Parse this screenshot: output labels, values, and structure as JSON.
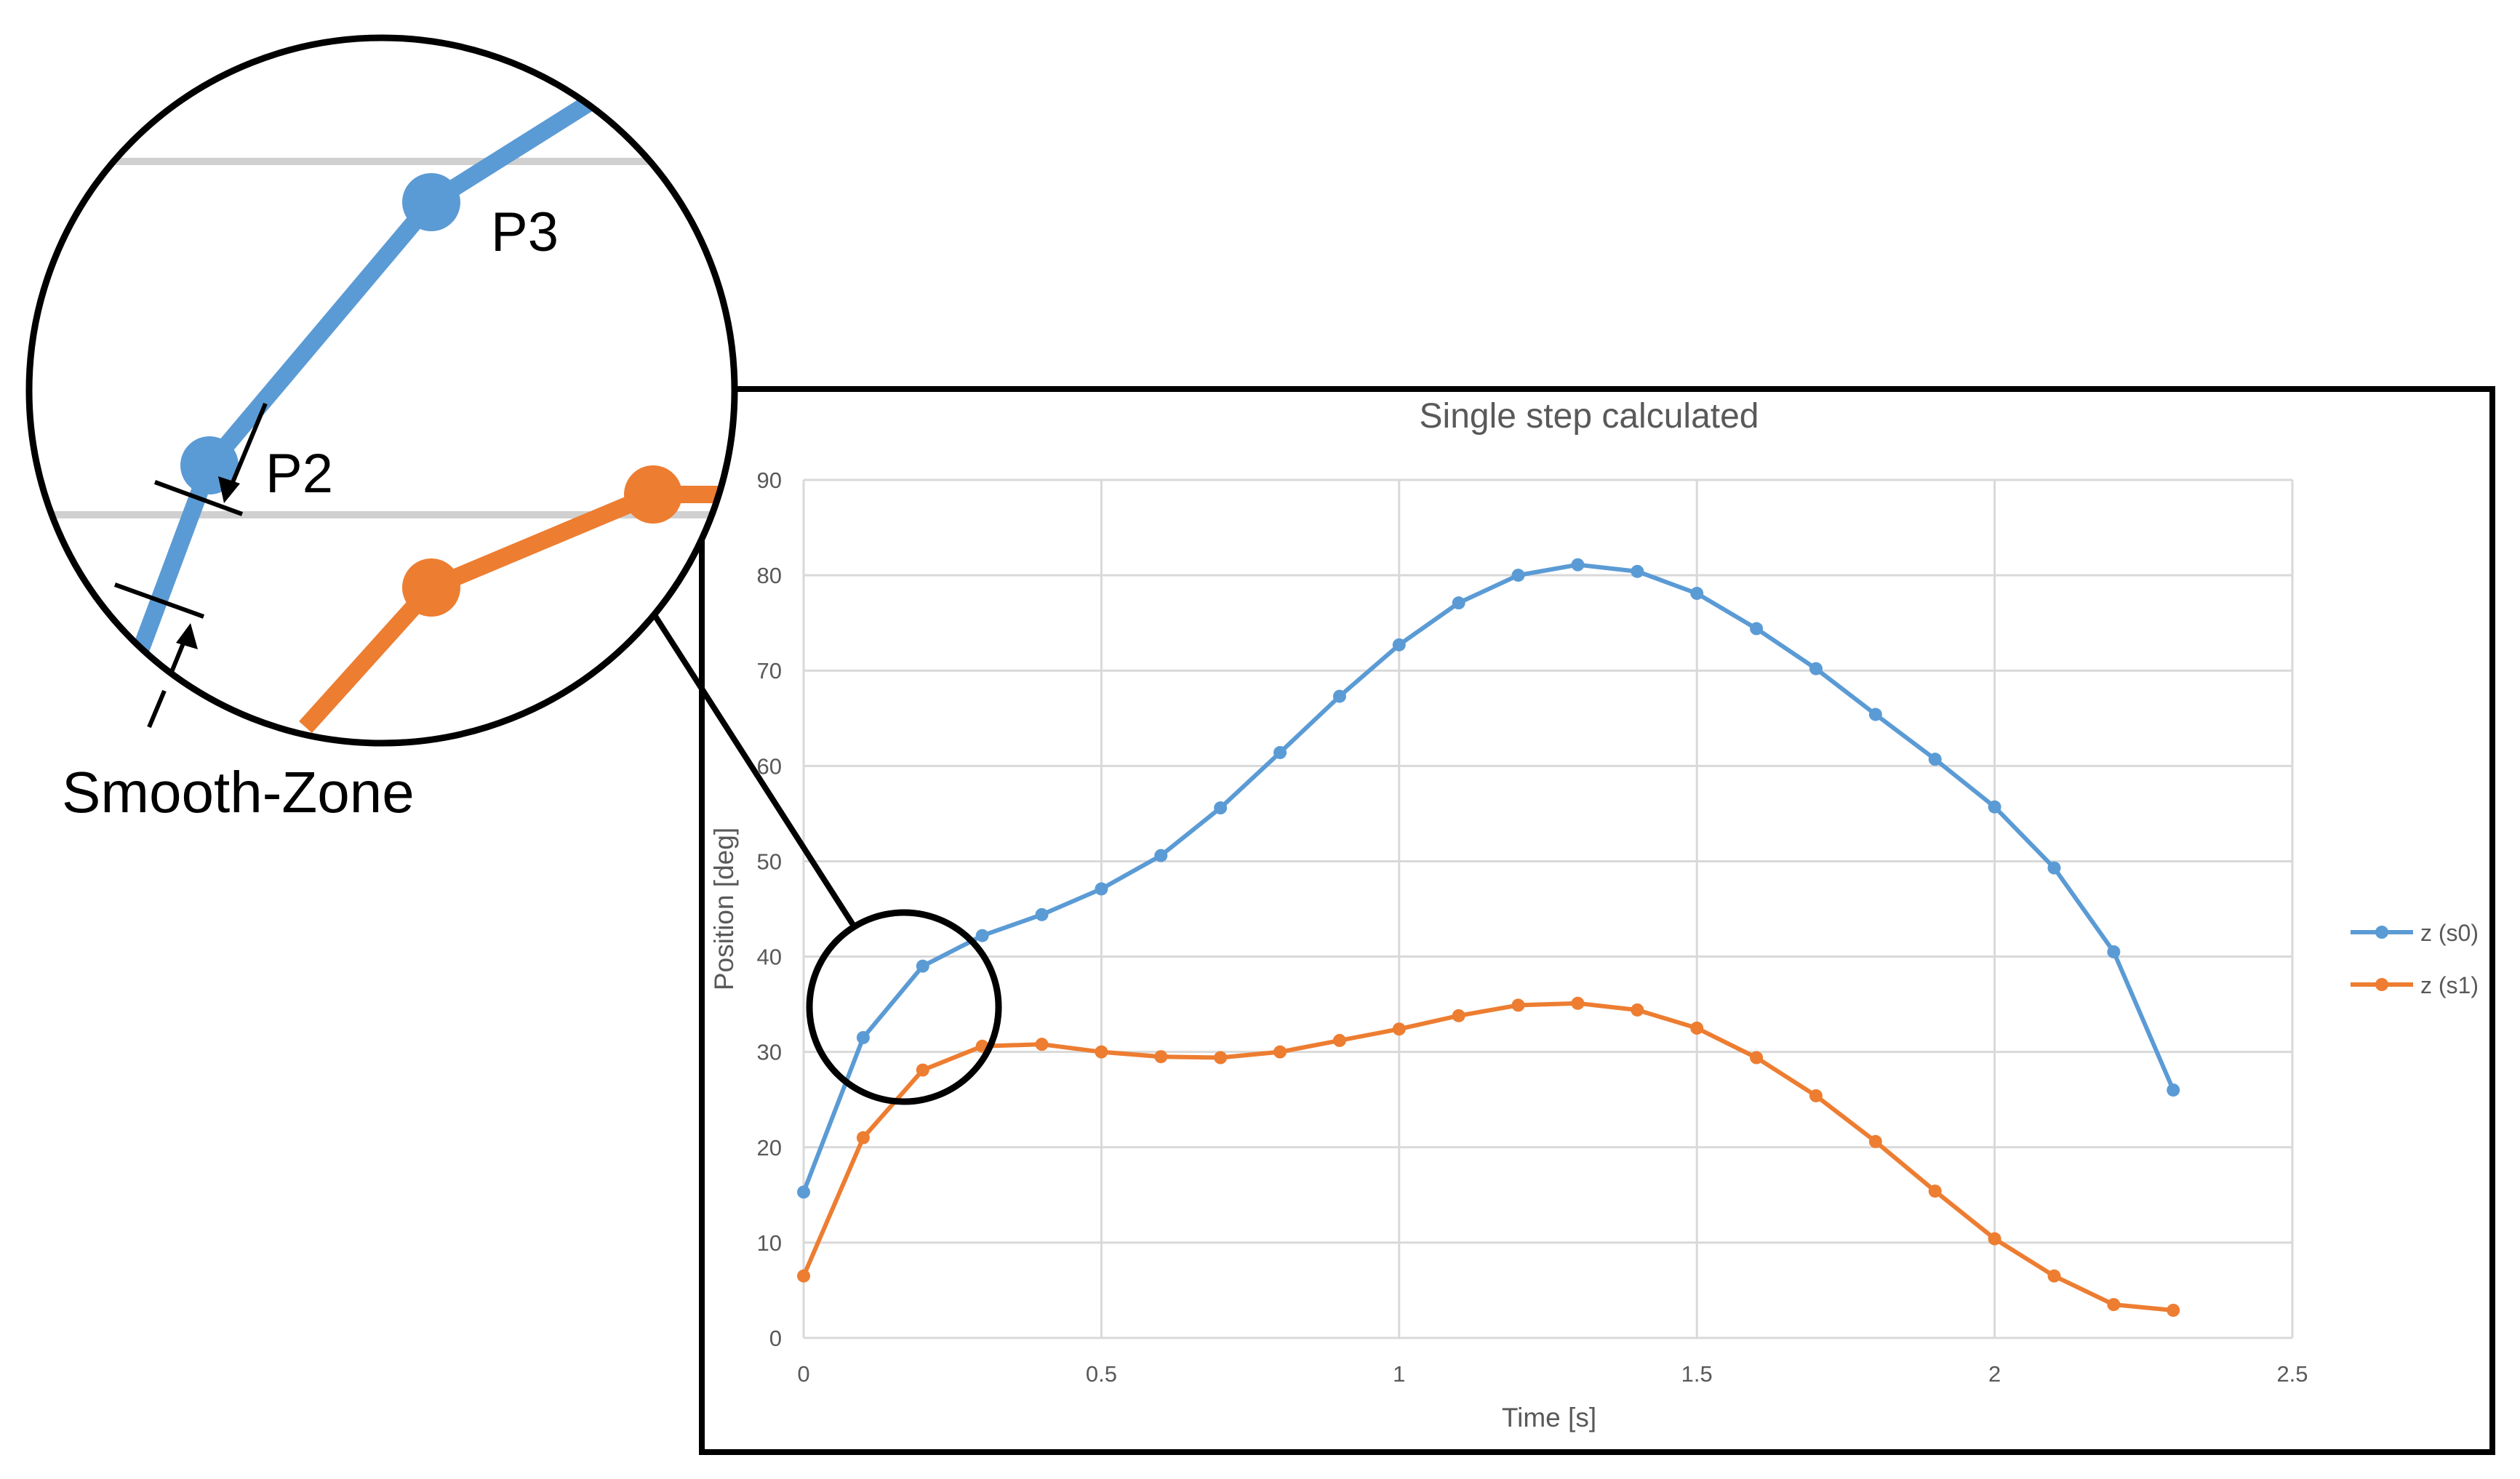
{
  "chart_data": {
    "type": "line",
    "title": "Single step calculated",
    "xlabel": "Time [s]",
    "ylabel": "Position [deg]",
    "xlim": [
      0,
      2.5
    ],
    "ylim": [
      0,
      90
    ],
    "xticks": [
      0,
      0.5,
      1,
      1.5,
      2,
      2.5
    ],
    "xtick_labels": [
      "0",
      "0.5",
      "1",
      "1.5",
      "2",
      "2.5"
    ],
    "yticks": [
      0,
      10,
      20,
      30,
      40,
      50,
      60,
      70,
      80,
      90
    ],
    "ytick_labels": [
      "0",
      "10",
      "20",
      "30",
      "40",
      "50",
      "60",
      "70",
      "80",
      "90"
    ],
    "grid": true,
    "legend_position": "right",
    "x": [
      0,
      0.1,
      0.2,
      0.3,
      0.4,
      0.5,
      0.6,
      0.7,
      0.8,
      0.9,
      1.0,
      1.1,
      1.2,
      1.3,
      1.4,
      1.5,
      1.6,
      1.7,
      1.8,
      1.9,
      2.0,
      2.1,
      2.2,
      2.3
    ],
    "series": [
      {
        "name": "z (s0)",
        "color": "#5b9bd5",
        "values": [
          15.3,
          31.5,
          39.0,
          42.2,
          44.4,
          47.1,
          50.6,
          55.6,
          61.4,
          67.3,
          72.7,
          77.1,
          80.0,
          81.1,
          80.4,
          78.1,
          74.4,
          70.2,
          65.4,
          60.7,
          55.7,
          49.3,
          40.5,
          26.0
        ]
      },
      {
        "name": "z (s1)",
        "color": "#ed7d31",
        "values": [
          6.5,
          21.0,
          28.1,
          30.6,
          30.8,
          30.0,
          29.5,
          29.4,
          30.0,
          31.2,
          32.4,
          33.8,
          34.9,
          35.1,
          34.4,
          32.5,
          29.4,
          25.4,
          20.6,
          15.4,
          10.4,
          6.5,
          3.5,
          2.9
        ]
      }
    ]
  },
  "zoom_inset": {
    "labels": [
      "P3",
      "P2"
    ],
    "annotation": "Smooth-Zone"
  }
}
